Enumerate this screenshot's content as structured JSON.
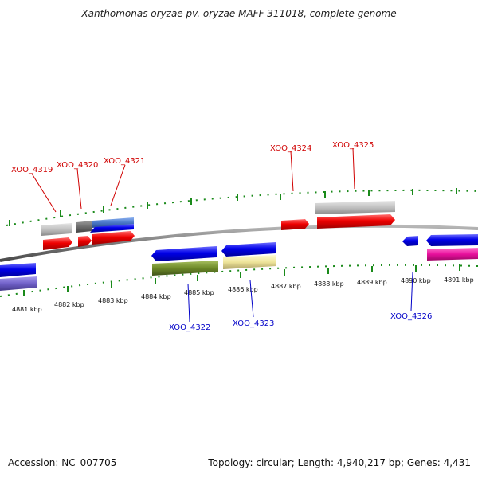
{
  "title": "Xanthomonas oryzae pv. oryzae MAFF 311018, complete genome",
  "footer": {
    "accession": "Accession: NC_007705",
    "summary": "Topology: circular; Length: 4,940,217 bp; Genes: 4,431"
  },
  "colors": {
    "backbone": "#8a8a8a",
    "tick": "#1a8a1a",
    "top_label": "#d00000",
    "bottom_label": "#0000c8",
    "gene_red": "#ee0000",
    "gene_blue": "#0000e8",
    "gene_gray": "#b4b4b4",
    "gene_darkgray": "#6e6e6e",
    "gene_lightblue": "#4a78c8",
    "gene_olive": "#6e8a28",
    "gene_khaki": "#eee49a",
    "gene_purple": "#7060c8",
    "gene_magenta": "#e8109c"
  },
  "scale_labels": [
    "4881 kbp",
    "4882 kbp",
    "4883 kbp",
    "4884 kbp",
    "4885 kbp",
    "4886 kbp",
    "4887 kbp",
    "4888 kbp",
    "4889 kbp",
    "4890 kbp",
    "4891 kbp"
  ],
  "top_genes": [
    "XOO_4319",
    "XOO_4320",
    "XOO_4321",
    "XOO_4324",
    "XOO_4325"
  ],
  "bottom_genes": [
    "XOO_4322",
    "XOO_4323",
    "XOO_4326"
  ]
}
